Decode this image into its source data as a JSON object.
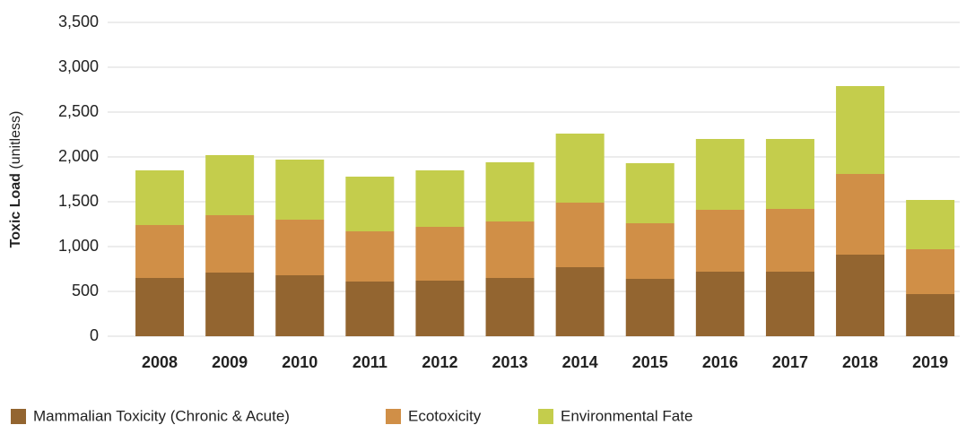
{
  "chart_data": {
    "type": "stacked_bar",
    "y_label": "Toxic Load",
    "y_label_unit": "(unitless)",
    "categories": [
      "2008",
      "2009",
      "2010",
      "2011",
      "2012",
      "2013",
      "2014",
      "2015",
      "2016",
      "2017",
      "2018",
      "2019"
    ],
    "series": [
      {
        "name": "Mammalian Toxicity (Chronic & Acute)",
        "color": "#936530",
        "values": [
          650,
          710,
          680,
          610,
          620,
          650,
          770,
          640,
          720,
          720,
          910,
          470
        ]
      },
      {
        "name": "Ecotoxicity",
        "color": "#d08f47",
        "values": [
          590,
          640,
          620,
          560,
          600,
          630,
          720,
          620,
          690,
          700,
          900,
          500
        ]
      },
      {
        "name": "Environmental Fate",
        "color": "#c4cd4c",
        "values": [
          610,
          670,
          670,
          610,
          630,
          660,
          770,
          670,
          790,
          780,
          980,
          550
        ]
      }
    ],
    "ylim": [
      0,
      3500
    ],
    "yticks": [
      0,
      500,
      {
        "value": 1000,
        "label": "1,000"
      },
      {
        "value": 1500,
        "label": "1,500"
      },
      {
        "value": 2000,
        "label": "2,000"
      },
      {
        "value": 2500,
        "label": "2,500"
      },
      {
        "value": 3000,
        "label": "3,000"
      },
      {
        "value": 3500,
        "label": "3,500"
      }
    ],
    "grid": true,
    "legend": "bottom"
  }
}
